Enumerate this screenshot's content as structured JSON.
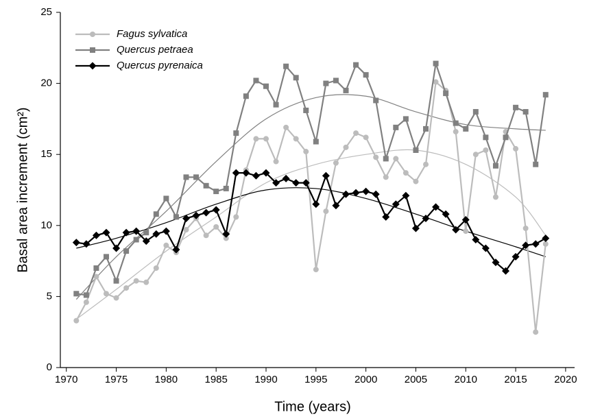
{
  "chart_data": {
    "type": "line",
    "x_label": "Time (years)",
    "y_label": "Basal area increment (cm²)",
    "x": [
      1971,
      1972,
      1973,
      1974,
      1975,
      1976,
      1977,
      1978,
      1979,
      1980,
      1981,
      1982,
      1983,
      1984,
      1985,
      1986,
      1987,
      1988,
      1989,
      1990,
      1991,
      1992,
      1993,
      1994,
      1995,
      1996,
      1997,
      1998,
      1999,
      2000,
      2001,
      2002,
      2003,
      2004,
      2005,
      2006,
      2007,
      2008,
      2009,
      2010,
      2011,
      2012,
      2013,
      2014,
      2015,
      2016,
      2017,
      2018
    ],
    "trend_x": [
      1971,
      1975,
      1980,
      1985,
      1990,
      1995,
      2000,
      2005,
      2010,
      2015,
      2018
    ],
    "xlim": [
      1969.4,
      2020.9
    ],
    "xticks": [
      1970,
      1975,
      1980,
      1985,
      1990,
      1995,
      2000,
      2005,
      2010,
      2015,
      2020
    ],
    "ylim": [
      0,
      25
    ],
    "yticks": [
      0,
      5,
      10,
      15,
      20,
      25
    ],
    "legend": "top-left",
    "series": [
      {
        "name": "Fagus sylvatica",
        "color": "#bcbcbc",
        "marker": "circle",
        "values": [
          3.3,
          4.6,
          6.4,
          5.2,
          4.9,
          5.6,
          6.1,
          6.0,
          7.0,
          8.6,
          8.1,
          9.7,
          10.5,
          9.3,
          9.9,
          9.1,
          10.6,
          13.9,
          16.1,
          16.1,
          14.5,
          16.9,
          16.1,
          15.2,
          6.9,
          11.0,
          14.4,
          15.5,
          16.5,
          16.2,
          14.8,
          13.4,
          14.7,
          13.7,
          13.1,
          14.3,
          20.1,
          19.5,
          16.6,
          9.6,
          15.0,
          15.3,
          12.0,
          16.6,
          15.4,
          9.8,
          2.5,
          8.7
        ],
        "trend": [
          3.4,
          5.5,
          8.2,
          10.6,
          13.0,
          14.3,
          15.0,
          15.3,
          14.3,
          12.0,
          9.3
        ]
      },
      {
        "name": "Quercus petraea",
        "color": "#808080",
        "marker": "square",
        "values": [
          5.2,
          5.1,
          7.0,
          7.8,
          6.1,
          8.2,
          9.0,
          9.5,
          10.8,
          11.9,
          10.6,
          13.4,
          13.4,
          12.8,
          12.4,
          12.6,
          16.5,
          19.1,
          20.2,
          19.8,
          18.5,
          21.2,
          20.4,
          18.1,
          15.9,
          20.0,
          20.2,
          19.5,
          21.3,
          20.6,
          18.8,
          14.7,
          16.9,
          17.5,
          15.3,
          16.8,
          21.4,
          19.3,
          17.2,
          16.8,
          18.0,
          16.2,
          14.2,
          16.2,
          18.3,
          18.0,
          14.3,
          19.2
        ],
        "trend": [
          4.8,
          7.8,
          11.0,
          14.5,
          17.5,
          19.0,
          19.1,
          18.0,
          17.1,
          16.8,
          16.7
        ]
      },
      {
        "name": "Quercus pyrenaica",
        "color": "#000000",
        "marker": "diamond",
        "values": [
          8.8,
          8.7,
          9.3,
          9.5,
          8.4,
          9.5,
          9.6,
          8.9,
          9.4,
          9.6,
          8.3,
          10.5,
          10.7,
          10.9,
          11.1,
          9.4,
          13.7,
          13.7,
          13.5,
          13.7,
          13.0,
          13.3,
          13.0,
          13.0,
          11.5,
          13.5,
          11.4,
          12.2,
          12.3,
          12.4,
          12.2,
          10.6,
          11.5,
          12.1,
          9.8,
          10.5,
          11.3,
          10.8,
          9.7,
          10.4,
          9.0,
          8.4,
          7.4,
          6.8,
          7.8,
          8.6,
          8.7,
          9.1
        ],
        "trend": [
          8.4,
          9.1,
          10.2,
          11.5,
          12.5,
          12.6,
          11.9,
          10.8,
          9.6,
          8.5,
          7.8
        ]
      }
    ]
  }
}
